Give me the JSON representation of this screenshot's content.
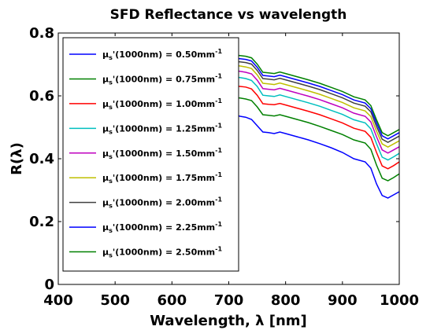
{
  "chart_data": {
    "type": "line",
    "title": "SFD Reflectance vs wavelength",
    "xlabel": "Wavelength, λ [nm]",
    "ylabel": "R(λ)",
    "xlim": [
      400,
      1000
    ],
    "ylim": [
      0,
      0.8
    ],
    "xticks": [
      400,
      500,
      600,
      700,
      800,
      900,
      1000
    ],
    "xtick_labels": [
      "400",
      "500",
      "600",
      "700",
      "800",
      "900",
      "1000"
    ],
    "yticks": [
      0,
      0.2,
      0.4,
      0.6,
      0.8
    ],
    "ytick_labels": [
      "0",
      "0.2",
      "0.4",
      "0.6",
      "0.8"
    ],
    "grid": false,
    "legend_position": "upper-left",
    "x": [
      700,
      710,
      720,
      730,
      740,
      750,
      760,
      770,
      780,
      790,
      800,
      820,
      840,
      860,
      880,
      900,
      920,
      940,
      950,
      960,
      970,
      980,
      990,
      1000
    ],
    "series": [
      {
        "name": "μs'(1000nm) = 0.50mm-1",
        "legend_parts": {
          "mu": "μ",
          "sub": "s",
          "mid": "'(1000nm) = 0.50mm",
          "sup": "-1"
        },
        "color": "#0000ff",
        "values": [
          0.538,
          0.54,
          0.535,
          0.532,
          0.525,
          0.505,
          0.485,
          0.483,
          0.48,
          0.485,
          0.48,
          0.47,
          0.46,
          0.448,
          0.435,
          0.42,
          0.4,
          0.39,
          0.37,
          0.32,
          0.283,
          0.275,
          0.285,
          0.295
        ]
      },
      {
        "name": "μs'(1000nm) = 0.75mm-1",
        "legend_parts": {
          "mu": "μ",
          "sub": "s",
          "mid": "'(1000nm) = 0.75mm",
          "sup": "-1"
        },
        "color": "#008000",
        "values": [
          0.593,
          0.595,
          0.593,
          0.59,
          0.585,
          0.565,
          0.54,
          0.538,
          0.536,
          0.54,
          0.535,
          0.525,
          0.515,
          0.503,
          0.49,
          0.477,
          0.46,
          0.45,
          0.43,
          0.38,
          0.338,
          0.33,
          0.34,
          0.352
        ]
      },
      {
        "name": "μs'(1000nm) = 1.00mm-1",
        "legend_parts": {
          "mu": "μ",
          "sub": "s",
          "mid": "'(1000nm) = 1.00mm",
          "sup": "-1"
        },
        "color": "#ff0000",
        "values": [
          0.628,
          0.632,
          0.63,
          0.628,
          0.622,
          0.602,
          0.575,
          0.573,
          0.572,
          0.576,
          0.571,
          0.561,
          0.551,
          0.54,
          0.527,
          0.514,
          0.497,
          0.487,
          0.468,
          0.42,
          0.377,
          0.368,
          0.378,
          0.39
        ]
      },
      {
        "name": "μs'(1000nm) = 1.25mm-1",
        "legend_parts": {
          "mu": "μ",
          "sub": "s",
          "mid": "'(1000nm) = 1.25mm",
          "sup": "-1"
        },
        "color": "#00bfbf",
        "values": [
          0.655,
          0.66,
          0.658,
          0.655,
          0.649,
          0.63,
          0.602,
          0.6,
          0.598,
          0.603,
          0.598,
          0.588,
          0.578,
          0.567,
          0.554,
          0.541,
          0.524,
          0.514,
          0.495,
          0.448,
          0.405,
          0.396,
          0.406,
          0.417
        ]
      },
      {
        "name": "μs'(1000nm) = 1.50mm-1",
        "legend_parts": {
          "mu": "μ",
          "sub": "s",
          "mid": "'(1000nm) = 1.50mm",
          "sup": "-1"
        },
        "color": "#bf00bf",
        "values": [
          0.675,
          0.68,
          0.678,
          0.675,
          0.67,
          0.65,
          0.623,
          0.621,
          0.619,
          0.624,
          0.619,
          0.609,
          0.599,
          0.588,
          0.575,
          0.562,
          0.545,
          0.535,
          0.517,
          0.47,
          0.428,
          0.418,
          0.428,
          0.438
        ]
      },
      {
        "name": "μs'(1000nm) = 1.75mm-1",
        "legend_parts": {
          "mu": "μ",
          "sub": "s",
          "mid": "'(1000nm) = 1.75mm",
          "sup": "-1"
        },
        "color": "#bfbf00",
        "values": [
          0.692,
          0.697,
          0.695,
          0.692,
          0.687,
          0.667,
          0.64,
          0.638,
          0.636,
          0.641,
          0.636,
          0.626,
          0.616,
          0.605,
          0.592,
          0.579,
          0.562,
          0.552,
          0.534,
          0.488,
          0.447,
          0.437,
          0.447,
          0.457
        ]
      },
      {
        "name": "μs'(1000nm) = 2.00mm-1",
        "legend_parts": {
          "mu": "μ",
          "sub": "s",
          "mid": "'(1000nm) = 2.00mm",
          "sup": "-1"
        },
        "color": "#404040",
        "values": [
          0.705,
          0.71,
          0.708,
          0.706,
          0.701,
          0.681,
          0.655,
          0.653,
          0.651,
          0.656,
          0.651,
          0.641,
          0.631,
          0.62,
          0.607,
          0.594,
          0.577,
          0.567,
          0.549,
          0.503,
          0.462,
          0.452,
          0.462,
          0.472
        ]
      },
      {
        "name": "μs'(1000nm) = 2.25mm-1",
        "legend_parts": {
          "mu": "μ",
          "sub": "s",
          "mid": "'(1000nm) = 2.25mm",
          "sup": "-1"
        },
        "color": "#0000ff",
        "values": [
          0.715,
          0.72,
          0.718,
          0.716,
          0.711,
          0.691,
          0.665,
          0.663,
          0.661,
          0.666,
          0.661,
          0.651,
          0.641,
          0.63,
          0.617,
          0.604,
          0.587,
          0.577,
          0.559,
          0.514,
          0.473,
          0.463,
          0.473,
          0.483
        ]
      },
      {
        "name": "μs'(1000nm) = 2.50mm-1",
        "legend_parts": {
          "mu": "μ",
          "sub": "s",
          "mid": "'(1000nm) = 2.50mm",
          "sup": "-1"
        },
        "color": "#008000",
        "values": [
          0.725,
          0.73,
          0.728,
          0.726,
          0.721,
          0.701,
          0.675,
          0.673,
          0.671,
          0.676,
          0.671,
          0.661,
          0.651,
          0.64,
          0.627,
          0.614,
          0.597,
          0.587,
          0.569,
          0.524,
          0.483,
          0.473,
          0.483,
          0.493
        ]
      }
    ]
  }
}
